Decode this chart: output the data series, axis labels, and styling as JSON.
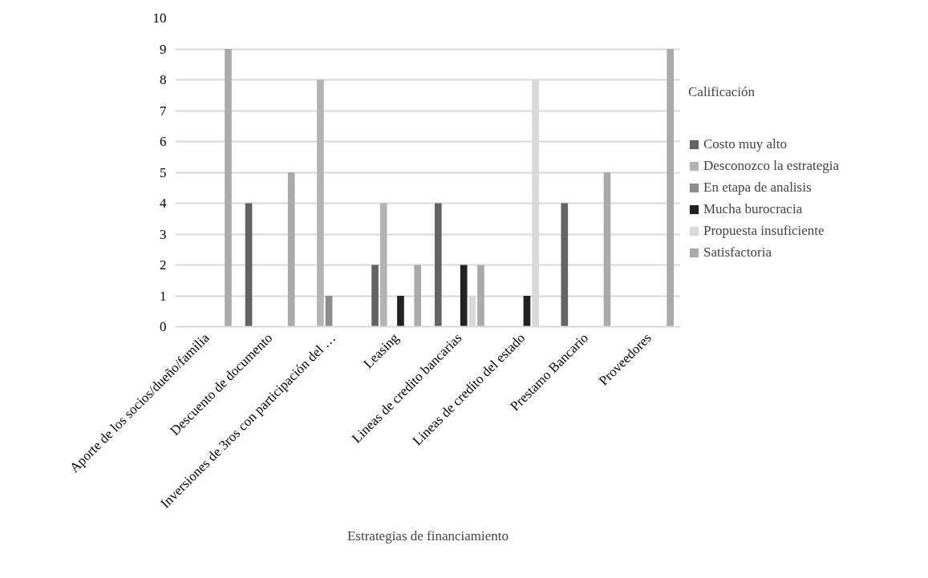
{
  "chart_data": {
    "type": "bar",
    "xlabel": "Estrategias de financiamiento",
    "legend_title": "Calificación",
    "categories": [
      "Aporte de los socios/dueño/familia",
      "Descuento de documento",
      "Inversiones de 3ros con participación del …",
      "Leasing",
      "Lineas de credito bancarias",
      "Lineas de credito del estado",
      "Prestamo Bancario",
      "Proveedores"
    ],
    "series": [
      {
        "name": "Costo muy alto",
        "color": "#636363",
        "values": [
          0,
          4,
          0,
          2,
          4,
          0,
          4,
          0
        ]
      },
      {
        "name": "Desconozco la estrategia",
        "color": "#b3b3b3",
        "values": [
          0,
          0,
          8,
          4,
          0,
          0,
          0,
          0
        ]
      },
      {
        "name": "En etapa de analisis",
        "color": "#8c8c8c",
        "values": [
          0,
          0,
          1,
          0,
          0,
          0,
          0,
          0
        ]
      },
      {
        "name": "Mucha burocracia",
        "color": "#222222",
        "values": [
          0,
          0,
          0,
          1,
          2,
          1,
          0,
          0
        ]
      },
      {
        "name": "Propuesta insuficiente",
        "color": "#d9d9d9",
        "values": [
          0,
          0,
          0,
          0,
          1,
          8,
          0,
          0
        ]
      },
      {
        "name": "Satisfactoria",
        "color": "#aaaaaa",
        "values": [
          9,
          5,
          0,
          2,
          2,
          0,
          5,
          9
        ]
      }
    ],
    "ylim": [
      0,
      10
    ],
    "yticks": [
      0,
      1,
      2,
      3,
      4,
      5,
      6,
      7,
      8,
      9,
      10
    ],
    "grid": "y",
    "legend": "right"
  }
}
